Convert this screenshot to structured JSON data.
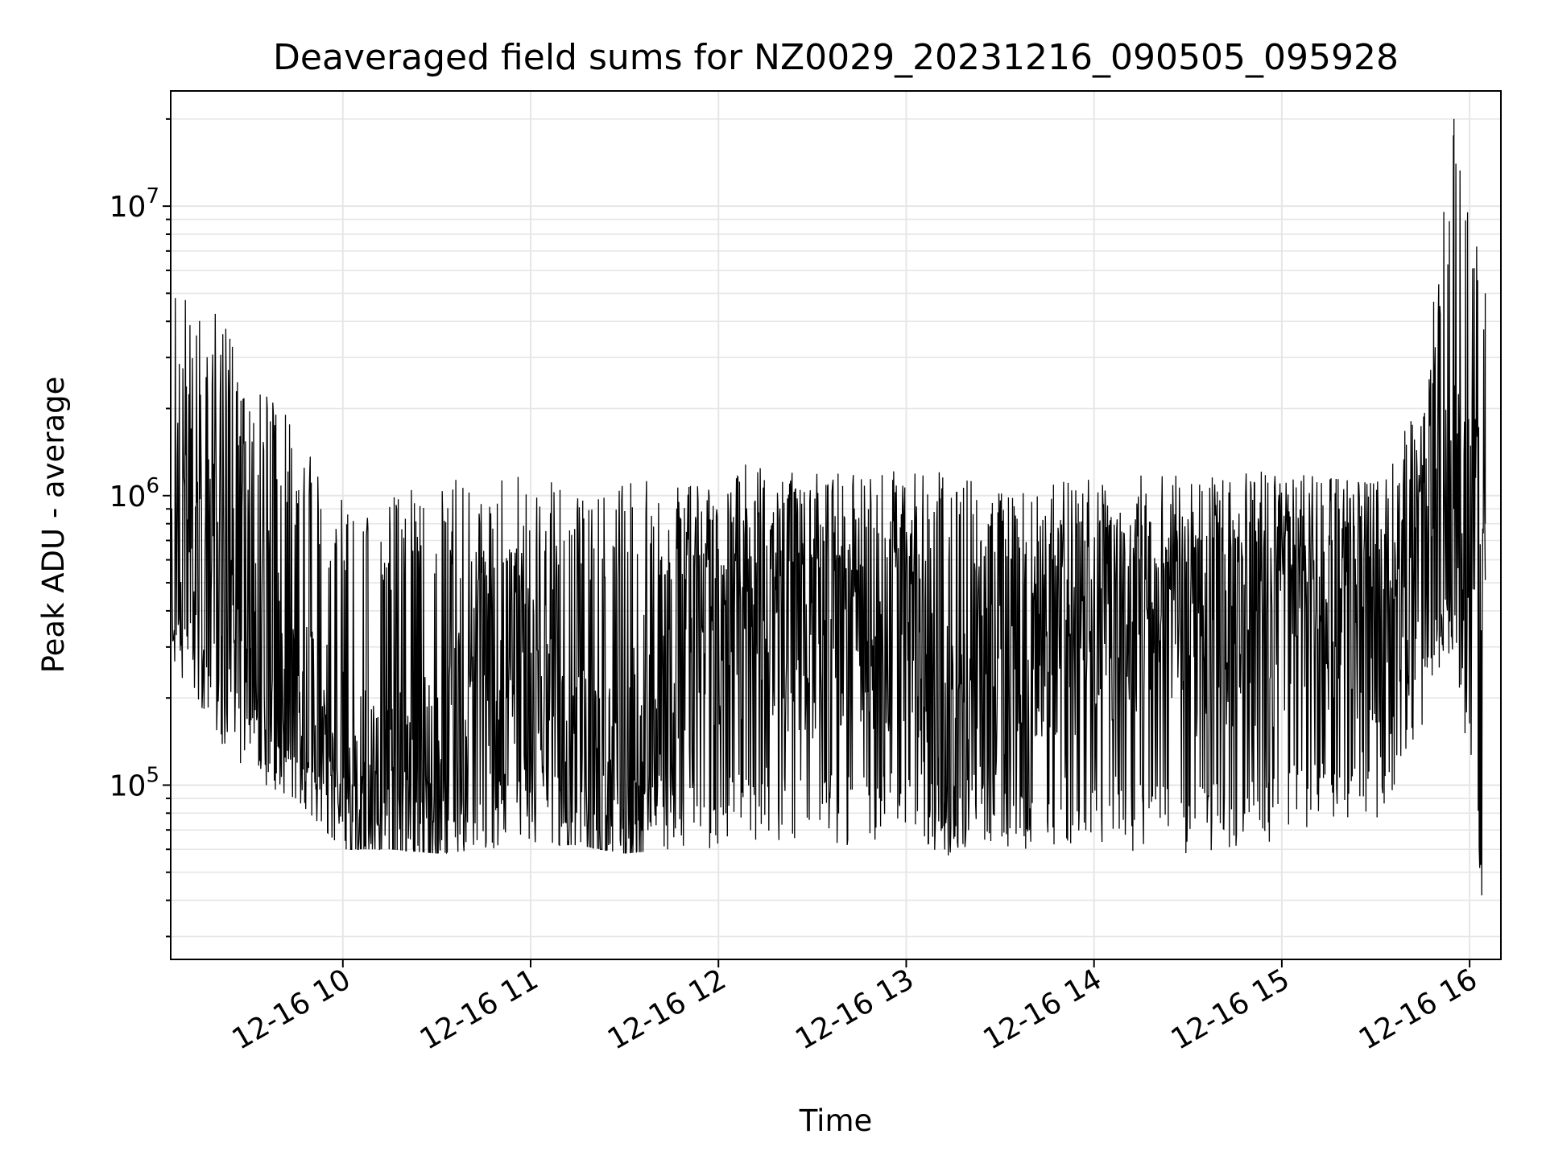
{
  "chart_data": {
    "type": "line",
    "title": "Deaveraged field sums for NZ0029_20231216_090505_095928",
    "xlabel": "Time",
    "ylabel": "Peak ADU - average",
    "yscale": "log",
    "grid": true,
    "xlim": [
      "2023-12-16T09:05",
      "2023-12-16T16:10"
    ],
    "ylim": [
      25000,
      25000000
    ],
    "x_tick_labels": [
      "12-16 10",
      "12-16 11",
      "12-16 12",
      "12-16 13",
      "12-16 14",
      "12-16 15",
      "12-16 16"
    ],
    "y_tick_labels": [
      {
        "base": "10",
        "exp": "5"
      },
      {
        "base": "10",
        "exp": "6"
      },
      {
        "base": "10",
        "exp": "7"
      }
    ],
    "series": [
      {
        "color": "#000000",
        "x": [
          "2023-12-16T09:05",
          "2023-12-16T09:20",
          "2023-12-16T09:35",
          "2023-12-16T09:45",
          "2023-12-16T10:00",
          "2023-12-16T10:15",
          "2023-12-16T10:30",
          "2023-12-16T10:45",
          "2023-12-16T11:00",
          "2023-12-16T11:15",
          "2023-12-16T11:30",
          "2023-12-16T11:45",
          "2023-12-16T12:00",
          "2023-12-16T12:15",
          "2023-12-16T12:30",
          "2023-12-16T12:45",
          "2023-12-16T13:00",
          "2023-12-16T13:15",
          "2023-12-16T13:30",
          "2023-12-16T13:45",
          "2023-12-16T14:00",
          "2023-12-16T14:15",
          "2023-12-16T14:30",
          "2023-12-16T14:45",
          "2023-12-16T15:00",
          "2023-12-16T15:15",
          "2023-12-16T15:30",
          "2023-12-16T15:45",
          "2023-12-16T15:55",
          "2023-12-16T16:05"
        ],
        "high": [
          5500000,
          4200000,
          2400000,
          1700000,
          1100000,
          1000000,
          1150000,
          1150000,
          1200000,
          1100000,
          1100000,
          1150000,
          1200000,
          1350000,
          1200000,
          1200000,
          1300000,
          1300000,
          1150000,
          1150000,
          1150000,
          1200000,
          1200000,
          1250000,
          1200000,
          1150000,
          1100000,
          2200000,
          20000000,
          5000000
        ],
        "low": [
          250000,
          140000,
          100000,
          90000,
          60000,
          60000,
          58000,
          60000,
          62000,
          62000,
          58000,
          60000,
          60000,
          65000,
          62000,
          60000,
          65000,
          55000,
          58000,
          60000,
          62000,
          58000,
          55000,
          60000,
          65000,
          70000,
          75000,
          150000,
          300000,
          32000
        ],
        "typical": [
          700000,
          600000,
          300000,
          160000,
          90000,
          85000,
          85000,
          200000,
          300000,
          90000,
          85000,
          300000,
          400000,
          450000,
          400000,
          450000,
          400000,
          150000,
          300000,
          400000,
          400000,
          450000,
          400000,
          400000,
          450000,
          450000,
          450000,
          700000,
          900000,
          800000
        ]
      }
    ]
  }
}
